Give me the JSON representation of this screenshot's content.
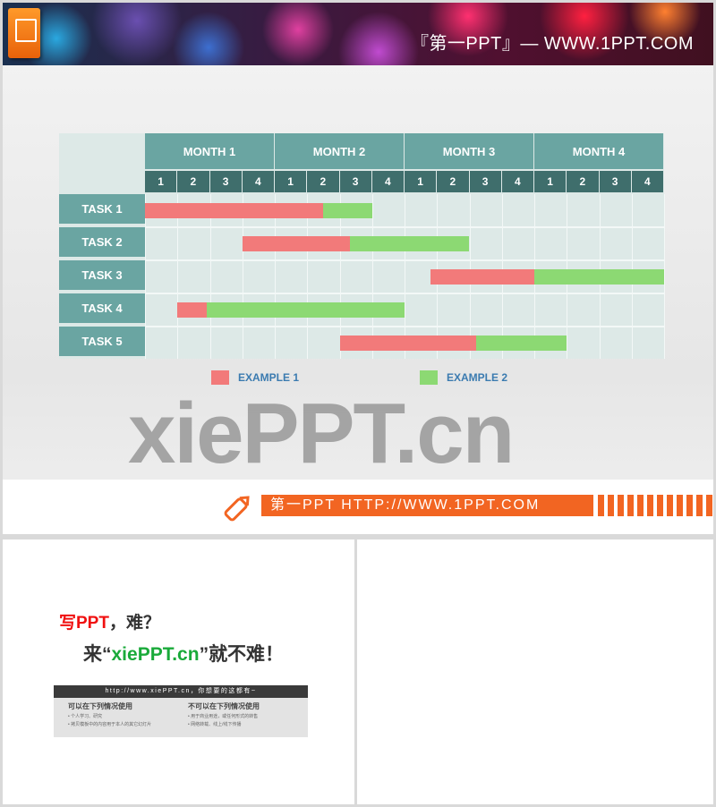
{
  "banner": {
    "title": "『第一PPT』— WWW.1PPT.COM",
    "logo_icon": "powerpoint-icon"
  },
  "chart_data": {
    "type": "gantt",
    "months": [
      "MONTH 1",
      "MONTH 2",
      "MONTH 3",
      "MONTH 4"
    ],
    "weeks": [
      "1",
      "2",
      "3",
      "4"
    ],
    "tasks": [
      {
        "name": "TASK 1",
        "example1": [
          0,
          5.5
        ],
        "example2": [
          5.5,
          7
        ]
      },
      {
        "name": "TASK 2",
        "example1": [
          3,
          6.33
        ],
        "example2": [
          6.33,
          10
        ]
      },
      {
        "name": "TASK 3",
        "example1": [
          8.8,
          12
        ],
        "example2": [
          12,
          16
        ]
      },
      {
        "name": "TASK 4",
        "example1": [
          1,
          1.9
        ],
        "example2": [
          1.9,
          8
        ]
      },
      {
        "name": "TASK 5",
        "example1": [
          6,
          10.2
        ],
        "example2": [
          10.2,
          13
        ]
      }
    ],
    "x_unit": "weeks",
    "xlim": [
      0,
      16
    ],
    "legend": [
      {
        "name": "EXAMPLE 1",
        "color": "#f27a7a"
      },
      {
        "name": "EXAMPLE 2",
        "color": "#8cd973"
      }
    ],
    "legend_placement": "bottom"
  },
  "watermark": "xiePPT.cn",
  "footer": {
    "text": "第一PPT HTTP://WWW.1PPT.COM",
    "accent": "#f26522"
  },
  "promo": {
    "line1_red": "写PPT",
    "line1_rest": "，难？",
    "line2_pre": "来“",
    "line2_green": "xiePPT.cn",
    "line2_post": "”就不难！",
    "bar": "http://www.xiePPT.cn，你想要的这都有~",
    "can_title": "可以在下列情况使用",
    "can": [
      "• 个人学习、研究",
      "• 拷贝模板中的内容用于本人的其它幻灯片"
    ],
    "cannot_title": "不可以在下列情况使用",
    "cannot": [
      "• 用于商业用途，或任何形式的转售",
      "• 网络转载、线上/线下传播"
    ]
  }
}
